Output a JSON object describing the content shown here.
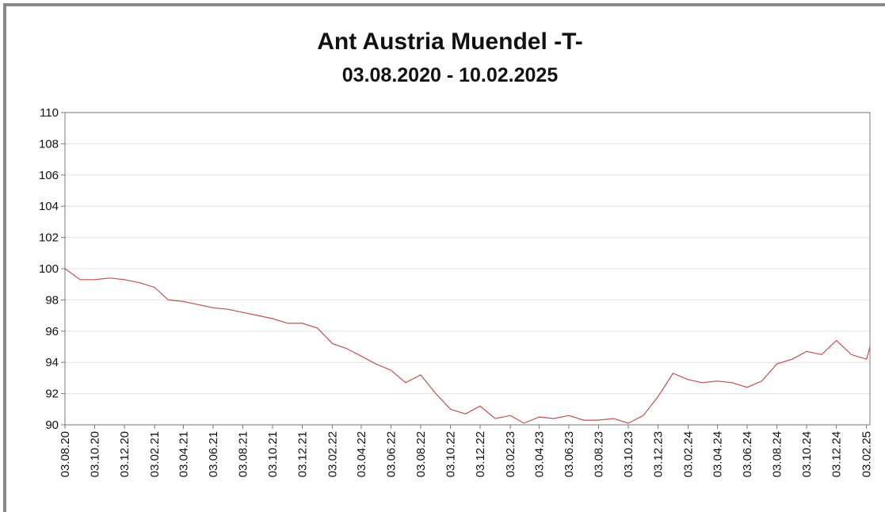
{
  "chart_data": {
    "type": "line",
    "title": "Ant Austria Muendel -T-",
    "subtitle": "03.08.2020 - 10.02.2025",
    "x": [
      "03.08.20",
      "03.09.20",
      "03.10.20",
      "03.11.20",
      "03.12.20",
      "03.01.21",
      "03.02.21",
      "03.03.21",
      "03.04.21",
      "03.05.21",
      "03.06.21",
      "03.07.21",
      "03.08.21",
      "03.09.21",
      "03.10.21",
      "03.11.21",
      "03.12.21",
      "03.01.22",
      "03.02.22",
      "03.03.22",
      "03.04.22",
      "03.05.22",
      "03.06.22",
      "03.07.22",
      "03.08.22",
      "03.09.22",
      "03.10.22",
      "03.11.22",
      "03.12.22",
      "03.01.23",
      "03.02.23",
      "03.03.23",
      "03.04.23",
      "03.05.23",
      "03.06.23",
      "03.07.23",
      "03.08.23",
      "03.09.23",
      "03.10.23",
      "03.11.23",
      "03.12.23",
      "03.01.24",
      "03.02.24",
      "03.03.24",
      "03.04.24",
      "03.05.24",
      "03.06.24",
      "03.07.24",
      "03.08.24",
      "03.09.24",
      "03.10.24",
      "03.11.24",
      "03.12.24",
      "03.01.25",
      "03.02.25",
      "10.02.25"
    ],
    "series": [
      {
        "name": "Ant Austria Muendel -T-",
        "color": "#c0504d",
        "values": [
          100.0,
          99.3,
          99.3,
          99.4,
          99.3,
          99.1,
          98.8,
          98.0,
          97.9,
          97.7,
          97.5,
          97.4,
          97.2,
          97.0,
          96.8,
          96.5,
          96.5,
          96.2,
          95.2,
          94.9,
          94.4,
          93.9,
          93.5,
          92.7,
          93.2,
          92.0,
          91.0,
          90.7,
          91.2,
          90.4,
          90.6,
          90.1,
          90.5,
          90.4,
          90.6,
          90.3,
          90.3,
          90.4,
          90.1,
          90.6,
          91.8,
          93.3,
          92.9,
          92.7,
          92.8,
          92.7,
          92.4,
          92.8,
          93.9,
          94.2,
          94.7,
          94.5,
          95.4,
          94.5,
          94.2,
          95.0
        ]
      }
    ],
    "xlim": [
      "03.08.20",
      "10.02.25"
    ],
    "xticks": [
      "03.08.20",
      "03.10.20",
      "03.12.20",
      "03.02.21",
      "03.04.21",
      "03.06.21",
      "03.08.21",
      "03.10.21",
      "03.12.21",
      "03.02.22",
      "03.04.22",
      "03.06.22",
      "03.08.22",
      "03.10.22",
      "03.12.22",
      "03.02.23",
      "03.04.23",
      "03.06.23",
      "03.08.23",
      "03.10.23",
      "03.12.23",
      "03.02.24",
      "03.04.24",
      "03.06.24",
      "03.08.24",
      "03.10.24",
      "03.12.24",
      "03.02.25"
    ],
    "ylim": [
      90,
      110
    ],
    "yticks": [
      90,
      92,
      94,
      96,
      98,
      100,
      102,
      104,
      106,
      108,
      110
    ],
    "grid": true
  }
}
